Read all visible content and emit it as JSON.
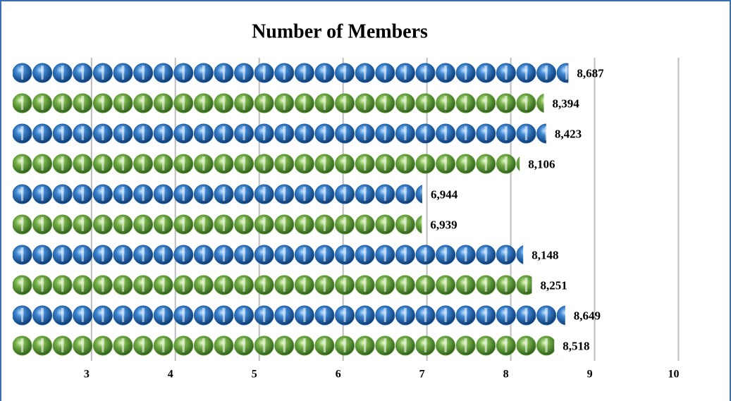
{
  "chart_data": {
    "type": "pictograph-bar",
    "title": "Number of Members",
    "values": [
      8.687,
      8.394,
      8.423,
      8.106,
      6.944,
      6.939,
      8.148,
      8.251,
      8.649,
      8.518
    ],
    "value_labels": [
      "8,687",
      "8,394",
      "8,423",
      "8,106",
      "6,944",
      "6,939",
      "8,148",
      "8,251",
      "8,649",
      "8,518"
    ],
    "colors": [
      "#1f5fa6",
      "#5c9a36",
      "#1f5fa6",
      "#5c9a36",
      "#1f5fa6",
      "#5c9a36",
      "#1f5fa6",
      "#5c9a36",
      "#1f5fa6",
      "#5c9a36"
    ],
    "xlim": [
      2.06,
      10.5
    ],
    "xticks": [
      3,
      4,
      5,
      6,
      7,
      8,
      9,
      10
    ],
    "grid": true
  }
}
